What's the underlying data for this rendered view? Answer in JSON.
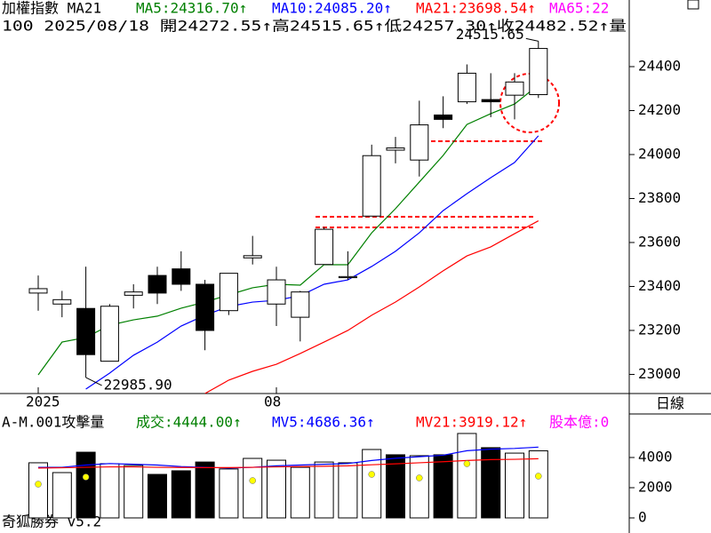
{
  "chart_data": [
    {
      "type": "candlestick",
      "header": [
        "加權指數 MA21",
        "MA5:24316.70↑",
        "MA10:24085.20↑",
        "MA21:23698.54↑",
        "MA65:22"
      ],
      "header_colors": [
        "#000000",
        "#008000",
        "#0000ff",
        "#ff0000",
        "#ff00ff"
      ],
      "subheader": "100 2025/08/18 開24272.55↑高24515.65↑低24257.30↑收24482.52↑量",
      "categories": [
        "2025",
        null,
        null,
        null,
        null,
        null,
        null,
        null,
        null,
        null,
        "08",
        null,
        null,
        null,
        null,
        null,
        null,
        null,
        null,
        null,
        null,
        null
      ],
      "open": [
        23370,
        23320,
        23300,
        23060,
        23360,
        23450,
        23480,
        23410,
        23290,
        23530,
        23320,
        23260,
        23500,
        23440,
        23720,
        24020,
        23975,
        24180,
        24240,
        24250,
        24270,
        24272.55
      ],
      "high": [
        23450,
        23380,
        23490,
        23320,
        23410,
        23490,
        23560,
        23430,
        23460,
        23630,
        23490,
        23380,
        23670,
        23560,
        24045,
        24080,
        24245,
        24265,
        24410,
        24370,
        24370,
        24515.65
      ],
      "low": [
        23290,
        23260,
        22985.9,
        23060,
        23300,
        23320,
        23380,
        23110,
        23270,
        23500,
        23220,
        23150,
        23500,
        23430,
        23720,
        23960,
        23900,
        24120,
        24230,
        24170,
        24160,
        24257.3
      ],
      "close": [
        23390,
        23340,
        23090,
        23310,
        23375,
        23370,
        23410,
        23200,
        23460,
        23540,
        23430,
        23375,
        23660,
        23445,
        23995,
        24030,
        24135,
        24160,
        24370,
        24240,
        24330,
        24482.52
      ],
      "up_color": "#ffffff",
      "down_color": "#000000",
      "series": [
        {
          "color": "#008000",
          "values": [
            22998,
            23147,
            23168,
            23224,
            23248,
            23265,
            23301,
            23329,
            23362,
            23394,
            23410,
            23406,
            23499,
            23499,
            23644,
            23754,
            23875,
            23996,
            24137,
            24186,
            24230,
            24316.7
          ]
        },
        {
          "color": "#0000ff",
          "values": [
            null,
            null,
            22933,
            23006,
            23087,
            23147,
            23220,
            23269,
            23309,
            23329,
            23337,
            23358,
            23410,
            23430,
            23491,
            23560,
            23644,
            23745,
            23822,
            23895,
            23964,
            24085.2
          ]
        },
        {
          "color": "#ff0000",
          "values": [
            null,
            null,
            null,
            null,
            null,
            null,
            null,
            22913,
            22974,
            23014,
            23046,
            23095,
            23147,
            23200,
            23269,
            23329,
            23398,
            23471,
            23539,
            23580,
            23640,
            23698.54
          ]
        }
      ],
      "annotations": [
        "24515.65",
        "22985.90"
      ],
      "ylim": [
        22913,
        24703
      ],
      "yticks": [
        23000,
        23200,
        23400,
        23600,
        23800,
        24000,
        24200,
        24400
      ]
    },
    {
      "type": "bar",
      "header": [
        "A-M.001攻擊量",
        "成交:4444.00↑",
        "MV5:4686.36↑",
        "MV21:3919.12↑",
        "股本億:0"
      ],
      "header_colors": [
        "#000000",
        "#008000",
        "#0000ff",
        "#ff0000",
        "#ff00ff"
      ],
      "period": "日線",
      "footer": "奇狐勝券 v5.2",
      "values": [
        3650,
        3000,
        4350,
        3590,
        3470,
        2880,
        3120,
        3700,
        3240,
        3940,
        3820,
        3350,
        3700,
        3650,
        4530,
        4180,
        4120,
        4180,
        5590,
        4650,
        4290,
        4444
      ],
      "colors": [
        "#ffffff",
        "#ffffff",
        "#000000",
        "#ffffff",
        "#ffffff",
        "#000000",
        "#000000",
        "#000000",
        "#ffffff",
        "#ffffff",
        "#ffffff",
        "#ffffff",
        "#ffffff",
        "#ffffff",
        "#ffffff",
        "#000000",
        "#ffffff",
        "#000000",
        "#ffffff",
        "#000000",
        "#ffffff",
        "#ffffff"
      ],
      "series": [
        {
          "color": "#0000ff",
          "values": [
            3350,
            3350,
            3500,
            3600,
            3550,
            3500,
            3400,
            3350,
            3300,
            3350,
            3450,
            3500,
            3550,
            3600,
            3800,
            3950,
            4050,
            4150,
            4450,
            4550,
            4600,
            4686.36
          ]
        },
        {
          "color": "#ff0000",
          "values": [
            3300,
            3320,
            3350,
            3380,
            3380,
            3350,
            3340,
            3330,
            3330,
            3350,
            3380,
            3400,
            3420,
            3450,
            3520,
            3580,
            3650,
            3720,
            3800,
            3860,
            3880,
            3919.12
          ]
        }
      ],
      "markers": {
        "color": "#ffff00",
        "values": [
          2235,
          null,
          2706,
          null,
          null,
          null,
          null,
          null,
          null,
          2470,
          null,
          null,
          null,
          null,
          2882,
          null,
          2647,
          null,
          3588,
          null,
          null,
          2765
        ]
      },
      "ylim": [
        -1000,
        7118
      ],
      "yticks": [
        0,
        2000,
        4000
      ]
    }
  ]
}
